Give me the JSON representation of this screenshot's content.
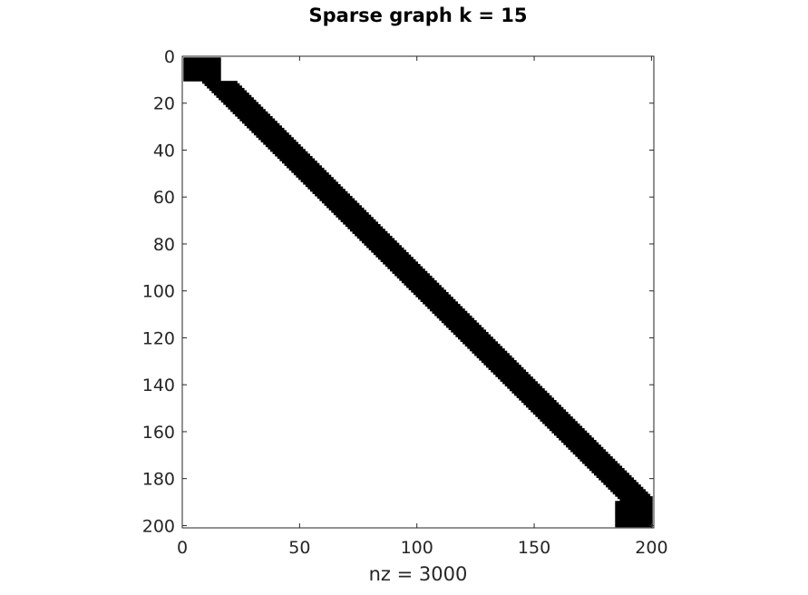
{
  "chart_data": {
    "type": "heatmap",
    "subtype": "sparsity-pattern",
    "title": "Sparse graph k = 15",
    "xlabel": "nz = 3000",
    "ylabel": "",
    "matrix_size": 200,
    "k": 15,
    "nz": 3000,
    "xlim": [
      0,
      201
    ],
    "ylim": [
      0,
      201
    ],
    "y_direction": "reversed",
    "xticks": [
      0,
      50,
      100,
      150,
      200
    ],
    "yticks": [
      0,
      20,
      40,
      60,
      80,
      100,
      120,
      140,
      160,
      180,
      200
    ],
    "grid": false,
    "legend": "none",
    "marker_color": "#000000",
    "axis_color": "#262626"
  }
}
